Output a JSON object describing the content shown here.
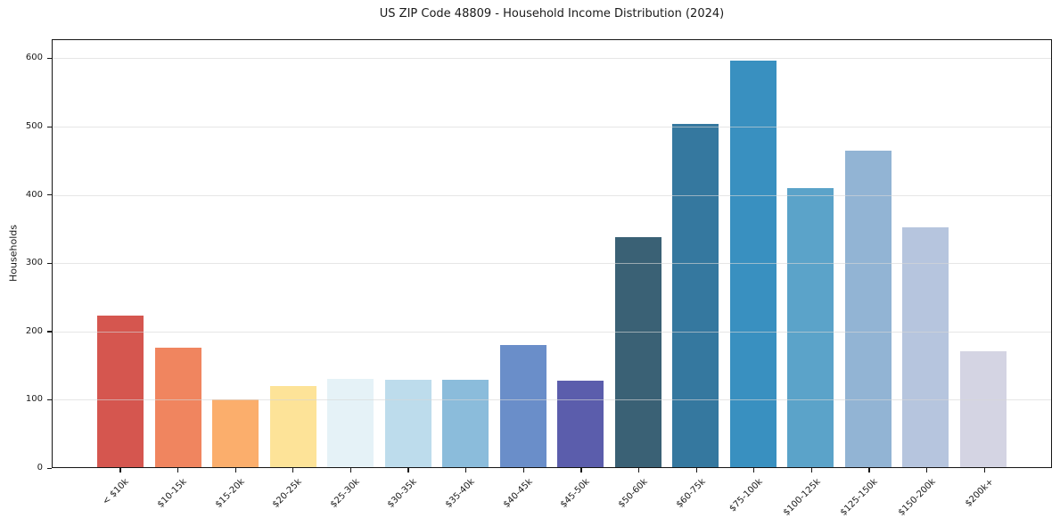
{
  "window": {
    "background_color": "#ffffff",
    "text_color": "#1a1a1a",
    "axis_color": "#151515",
    "grid_color": "#d7d7d7"
  },
  "chart_data": {
    "type": "bar",
    "title": "US ZIP Code 48809 - Household Income Distribution (2024)",
    "xlabel": "",
    "ylabel": "Households",
    "categories": [
      "< $10k",
      "$10-15k",
      "$15-20k",
      "$20-25k",
      "$25-30k",
      "$30-35k",
      "$35-40k",
      "$40-45k",
      "$45-50k",
      "$50-60k",
      "$60-75k",
      "$75-100k",
      "$100-125k",
      "$125-150k",
      "$150-200k",
      "$200k+"
    ],
    "values": [
      223,
      176,
      100,
      119,
      130,
      128,
      129,
      180,
      127,
      338,
      505,
      598,
      410,
      466,
      353,
      171
    ],
    "bar_colors": [
      "#d5564f",
      "#f0855f",
      "#fbae6c",
      "#fde398",
      "#e5f2f7",
      "#bddcec",
      "#8bbcdb",
      "#6a8ec9",
      "#5b5dac",
      "#3a6175",
      "#35789f",
      "#3990c0",
      "#5ba3c9",
      "#92b4d4",
      "#b6c5de",
      "#d4d4e3"
    ],
    "yticks": [
      0,
      100,
      200,
      300,
      400,
      500,
      600
    ],
    "ylim": [
      0,
      628
    ],
    "grid": "horizontal-lines-over-bars",
    "legend_position": "none",
    "x_tick_rotation_deg": 45,
    "spines": "box"
  }
}
